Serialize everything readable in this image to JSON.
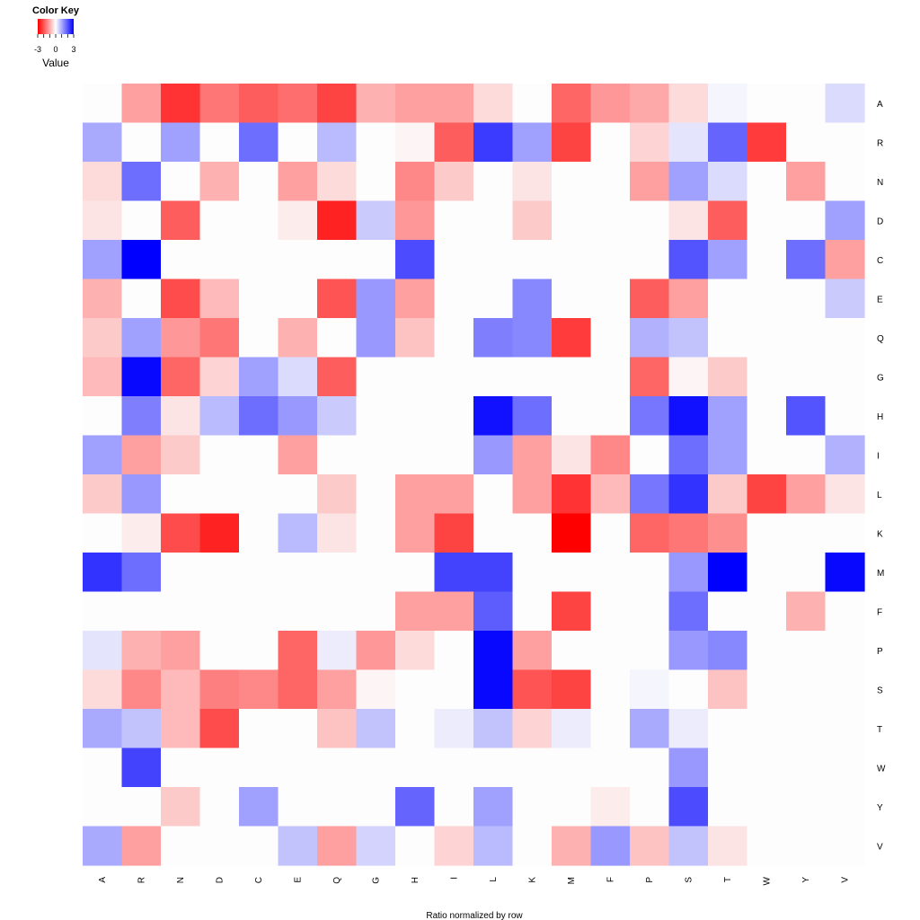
{
  "chart_data": {
    "type": "heatmap",
    "xlabel": "Ratio normalized by row",
    "columns": [
      "A",
      "R",
      "N",
      "D",
      "C",
      "E",
      "Q",
      "G",
      "H",
      "I",
      "L",
      "K",
      "M",
      "F",
      "P",
      "S",
      "T",
      "W",
      "Y",
      "V"
    ],
    "rows": [
      "A",
      "R",
      "N",
      "D",
      "C",
      "E",
      "Q",
      "G",
      "H",
      "I",
      "L",
      "K",
      "M",
      "F",
      "P",
      "S",
      "T",
      "W",
      "Y",
      "V"
    ],
    "values": [
      [
        0,
        -1.1,
        -2.4,
        -1.6,
        -1.9,
        -1.7,
        -2.2,
        -0.9,
        -1.1,
        -1.1,
        -0.4,
        0,
        -1.8,
        -1.2,
        -1.0,
        -0.4,
        0.1,
        0,
        0,
        0.4
      ],
      [
        1.0,
        0,
        1.1,
        0,
        1.7,
        0,
        0.8,
        0,
        -0.1,
        -1.9,
        2.3,
        1.1,
        -2.2,
        0,
        -0.5,
        0.3,
        1.8,
        -2.3,
        0,
        0
      ],
      [
        -0.4,
        1.7,
        0,
        -0.9,
        0,
        -1.1,
        -0.4,
        0,
        -1.4,
        -0.6,
        0,
        -0.3,
        0,
        0,
        -1.1,
        1.1,
        0.4,
        0,
        -1.1,
        0
      ],
      [
        -0.3,
        0,
        -1.9,
        0,
        0,
        -0.2,
        -2.6,
        0.6,
        -1.2,
        0,
        0,
        -0.6,
        0,
        0,
        0,
        -0.3,
        -1.9,
        0,
        0,
        1.1
      ],
      [
        1.1,
        3.0,
        0,
        0,
        0,
        0,
        0,
        0,
        2.1,
        0,
        0,
        0,
        0,
        0,
        0,
        2.0,
        1.1,
        0,
        1.7,
        -1.1
      ],
      [
        -0.9,
        0,
        -2.1,
        -0.8,
        0,
        0,
        -2.0,
        1.2,
        -1.1,
        0,
        0,
        1.4,
        0,
        0,
        -1.9,
        -1.1,
        0,
        0,
        0,
        0.6
      ],
      [
        -0.6,
        1.1,
        -1.2,
        -1.6,
        0,
        -0.9,
        0,
        1.2,
        -0.7,
        0,
        1.5,
        1.4,
        -2.3,
        0,
        0.9,
        0.7,
        0,
        0,
        0,
        0
      ],
      [
        -0.8,
        2.9,
        -1.8,
        -0.5,
        1.1,
        0.4,
        -1.9,
        0,
        0,
        0,
        0,
        0,
        0,
        0,
        -1.8,
        -0.1,
        -0.6,
        0,
        0,
        0
      ],
      [
        0,
        1.5,
        -0.3,
        0.8,
        1.7,
        1.2,
        0.6,
        0,
        0,
        0,
        2.8,
        1.7,
        0,
        0,
        1.6,
        2.8,
        1.1,
        0,
        2.0,
        0
      ],
      [
        1.1,
        -1.1,
        -0.6,
        0,
        0,
        -1.1,
        0,
        0,
        0,
        0,
        1.2,
        -1.1,
        -0.3,
        -1.4,
        0,
        1.7,
        1.1,
        0,
        0,
        0.9
      ],
      [
        -0.6,
        1.2,
        0,
        0,
        0,
        0,
        -0.6,
        0,
        -1.1,
        -1.1,
        0,
        -1.1,
        -2.4,
        -0.8,
        1.6,
        2.4,
        -0.6,
        -2.2,
        -1.1,
        -0.3
      ],
      [
        0,
        -0.2,
        -2.1,
        -2.6,
        0,
        0.8,
        -0.3,
        0,
        -1.1,
        -2.2,
        0,
        0,
        -3.0,
        0,
        -1.8,
        -1.6,
        -1.3,
        0,
        0,
        0
      ],
      [
        2.4,
        1.7,
        0,
        0,
        0,
        0,
        0,
        0,
        0,
        2.2,
        2.2,
        0,
        0,
        0,
        0,
        1.2,
        3.0,
        0,
        0,
        2.9
      ],
      [
        0,
        0,
        0,
        0,
        0,
        0,
        0,
        0,
        -1.1,
        -1.1,
        1.9,
        0,
        -2.2,
        0,
        0,
        1.7,
        0,
        0,
        -0.9,
        0
      ],
      [
        0.3,
        -0.9,
        -1.1,
        0,
        0,
        -1.8,
        0.2,
        -1.2,
        -0.4,
        0,
        2.9,
        -1.1,
        0,
        0,
        0,
        1.2,
        1.4,
        0,
        0,
        0
      ],
      [
        -0.4,
        -1.4,
        -0.8,
        -1.5,
        -1.4,
        -1.8,
        -1.1,
        -0.1,
        0,
        0,
        2.9,
        -2.0,
        -2.2,
        0,
        0.1,
        0,
        -0.7,
        0,
        0,
        0
      ],
      [
        1.0,
        0.7,
        -0.8,
        -2.1,
        0,
        0,
        -0.7,
        0.7,
        0,
        0.2,
        0.7,
        -0.5,
        0.2,
        0,
        1.0,
        0.2,
        0,
        0,
        0,
        0
      ],
      [
        0,
        2.2,
        0,
        0,
        0,
        0,
        0,
        0,
        0,
        0,
        0,
        0,
        0,
        0,
        0,
        1.2,
        0,
        0,
        0,
        0
      ],
      [
        0,
        0,
        -0.6,
        0,
        1.1,
        0,
        0,
        0,
        1.8,
        0,
        1.1,
        0,
        0,
        -0.2,
        0,
        2.1,
        0,
        0,
        0,
        0
      ],
      [
        1.0,
        -1.1,
        0,
        0,
        0,
        0.7,
        -1.1,
        0.5,
        0,
        -0.5,
        0.8,
        0,
        -0.9,
        1.2,
        -0.7,
        0.7,
        -0.3,
        0,
        0,
        0
      ]
    ],
    "color_key": {
      "title": "Color Key",
      "label": "Value",
      "ticks": [
        "-3",
        "0",
        "3"
      ],
      "range": [
        -3,
        3
      ],
      "low_color": "#ff0000",
      "mid_color": "#ffffff",
      "high_color": "#0000ff"
    }
  }
}
